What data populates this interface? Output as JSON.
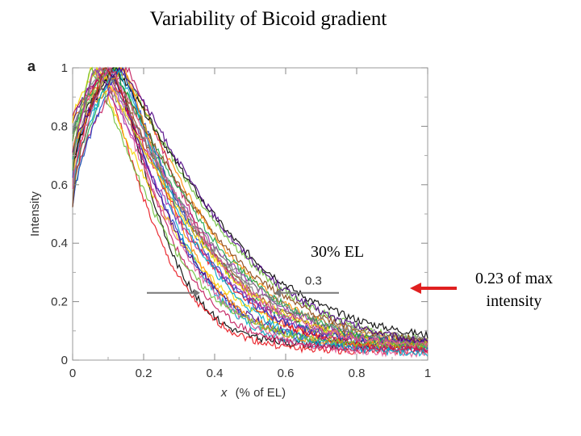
{
  "slide": {
    "title": "Variability of Bicoid gradient",
    "panel_letter": "a",
    "annotation_el": "30% EL",
    "annotation_max": "0.23 of max intensity",
    "arrow_color": "#e02020"
  },
  "chart_data": {
    "type": "line",
    "title": "",
    "xlabel_italic": "x",
    "xlabel_rest": "(% of EL)",
    "ylabel": "Intensity",
    "xlim": [
      0,
      1
    ],
    "ylim": [
      0,
      1
    ],
    "xticks": [
      "0",
      "0.2",
      "0.4",
      "0.6",
      "0.8",
      "1"
    ],
    "yticks": [
      "0",
      "0.2",
      "0.4",
      "0.6",
      "0.8",
      "1"
    ],
    "grid": false,
    "threshold_label": "0.3",
    "threshold_y": 0.23,
    "series_colors": [
      "#000000",
      "#e8141c",
      "#1f3fc4",
      "#f5d800",
      "#1aa64a",
      "#ff8c00",
      "#9b2fae",
      "#00a7c7",
      "#8b4513",
      "#c2185b",
      "#7a7a7a",
      "#4b0082",
      "#6bbf3a",
      "#e05c9a"
    ],
    "series_params": [
      {
        "p": 0.12,
        "s": 0.17,
        "b": 0.05
      },
      {
        "p": 0.08,
        "s": 0.19,
        "b": 0.03
      },
      {
        "p": 0.1,
        "s": 0.24,
        "b": 0.04
      },
      {
        "p": 0.05,
        "s": 0.27,
        "b": 0.06
      },
      {
        "p": 0.11,
        "s": 0.3,
        "b": 0.04
      },
      {
        "p": 0.13,
        "s": 0.33,
        "b": 0.05
      },
      {
        "p": 0.07,
        "s": 0.36,
        "b": 0.02
      },
      {
        "p": 0.14,
        "s": 0.21,
        "b": 0.04
      },
      {
        "p": 0.09,
        "s": 0.31,
        "b": 0.05
      },
      {
        "p": 0.15,
        "s": 0.28,
        "b": 0.03
      },
      {
        "p": 0.06,
        "s": 0.34,
        "b": 0.04
      },
      {
        "p": 0.1,
        "s": 0.23,
        "b": 0.06
      },
      {
        "p": 0.12,
        "s": 0.38,
        "b": 0.04
      },
      {
        "p": 0.08,
        "s": 0.25,
        "b": 0.02
      },
      {
        "p": 0.11,
        "s": 0.4,
        "b": 0.05
      },
      {
        "p": 0.09,
        "s": 0.29,
        "b": 0.03
      },
      {
        "p": 0.13,
        "s": 0.26,
        "b": 0.06
      },
      {
        "p": 0.07,
        "s": 0.32,
        "b": 0.04
      },
      {
        "p": 0.1,
        "s": 0.35,
        "b": 0.03
      },
      {
        "p": 0.14,
        "s": 0.22,
        "b": 0.05
      },
      {
        "p": 0.06,
        "s": 0.3,
        "b": 0.05
      },
      {
        "p": 0.12,
        "s": 0.27,
        "b": 0.02
      },
      {
        "p": 0.09,
        "s": 0.37,
        "b": 0.04
      },
      {
        "p": 0.11,
        "s": 0.2,
        "b": 0.04
      },
      {
        "p": 0.08,
        "s": 0.33,
        "b": 0.06
      },
      {
        "p": 0.13,
        "s": 0.39,
        "b": 0.03
      },
      {
        "p": 0.05,
        "s": 0.24,
        "b": 0.05
      },
      {
        "p": 0.1,
        "s": 0.31,
        "b": 0.04
      }
    ]
  }
}
